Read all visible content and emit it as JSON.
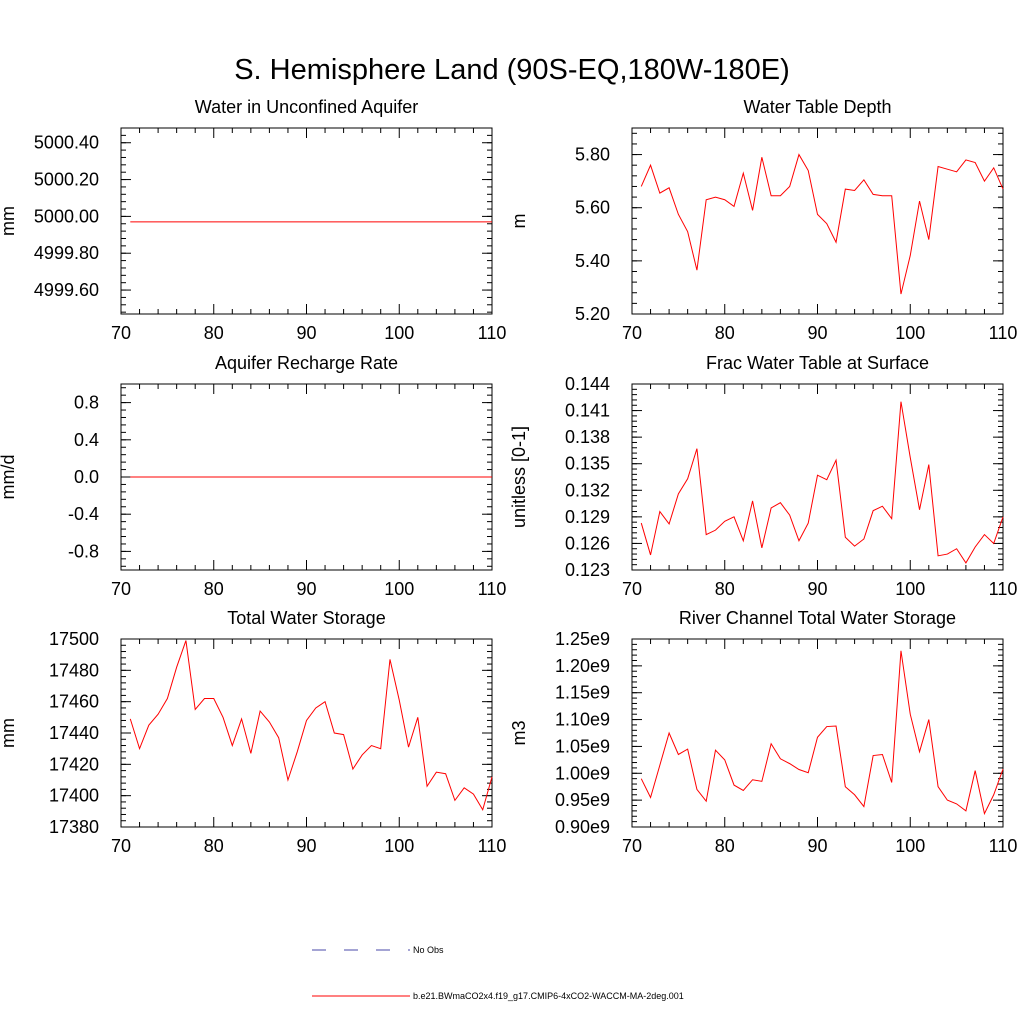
{
  "page_title": "S. Hemisphere Land (90S-EQ,180W-180E)",
  "legend": {
    "obs_label": "No Obs",
    "obs_color": "#4a4aa8",
    "model_label": "b.e21.BWmaCO2x4.f19_g17.CMIP6-4xCO2-WACCM-MA-2deg.001",
    "model_color": "#ff0000"
  },
  "chart_data": [
    {
      "id": "unconfined-aquifer",
      "type": "line",
      "title": "Water in Unconfined Aquifer",
      "xlabel": "",
      "ylabel": "mm",
      "xlim": [
        70,
        110
      ],
      "ylim": [
        4999.47,
        5000.48
      ],
      "x_ticks": [
        70,
        80,
        90,
        100,
        110
      ],
      "y_ticks": [
        4999.6,
        4999.8,
        5000.0,
        5000.2,
        5000.4
      ],
      "y_tick_labels": [
        "4999.60",
        "4999.80",
        "5000.00",
        "5000.20",
        "5000.40"
      ],
      "y_minor_step": 0.04,
      "x": [
        71,
        72,
        73,
        74,
        75,
        76,
        77,
        78,
        79,
        80,
        81,
        82,
        83,
        84,
        85,
        86,
        87,
        88,
        89,
        90,
        91,
        92,
        93,
        94,
        95,
        96,
        97,
        98,
        99,
        100,
        101,
        102,
        103,
        104,
        105,
        106,
        107,
        108,
        109,
        110
      ],
      "values": [
        4999.97,
        4999.97,
        4999.97,
        4999.97,
        4999.97,
        4999.97,
        4999.97,
        4999.97,
        4999.97,
        4999.97,
        4999.97,
        4999.97,
        4999.97,
        4999.97,
        4999.97,
        4999.97,
        4999.97,
        4999.97,
        4999.97,
        4999.97,
        4999.97,
        4999.97,
        4999.97,
        4999.97,
        4999.97,
        4999.97,
        4999.97,
        4999.97,
        4999.97,
        4999.97,
        4999.97,
        4999.97,
        4999.97,
        4999.97,
        4999.97,
        4999.97,
        4999.97,
        4999.97,
        4999.97,
        4999.97
      ]
    },
    {
      "id": "water-table-depth",
      "type": "line",
      "title": "Water Table Depth",
      "xlabel": "",
      "ylabel": "m",
      "xlim": [
        70,
        110
      ],
      "ylim": [
        5.2,
        5.9
      ],
      "x_ticks": [
        70,
        80,
        90,
        100,
        110
      ],
      "y_ticks": [
        5.2,
        5.4,
        5.6,
        5.8
      ],
      "y_tick_labels": [
        "5.20",
        "5.40",
        "5.60",
        "5.80"
      ],
      "y_minor_step": 0.04,
      "x": [
        71,
        72,
        73,
        74,
        75,
        76,
        77,
        78,
        79,
        80,
        81,
        82,
        83,
        84,
        85,
        86,
        87,
        88,
        89,
        90,
        91,
        92,
        93,
        94,
        95,
        96,
        97,
        98,
        99,
        100,
        101,
        102,
        103,
        104,
        105,
        106,
        107,
        108,
        109,
        110
      ],
      "values": [
        5.68,
        5.76,
        5.655,
        5.675,
        5.575,
        5.51,
        5.365,
        5.63,
        5.64,
        5.63,
        5.605,
        5.73,
        5.59,
        5.79,
        5.645,
        5.645,
        5.68,
        5.8,
        5.74,
        5.575,
        5.54,
        5.47,
        5.67,
        5.665,
        5.705,
        5.65,
        5.645,
        5.645,
        5.275,
        5.42,
        5.625,
        5.48,
        5.755,
        5.745,
        5.735,
        5.78,
        5.77,
        5.7,
        5.75,
        5.67
      ]
    },
    {
      "id": "aquifer-recharge",
      "type": "line",
      "title": "Aquifer Recharge Rate",
      "xlabel": "",
      "ylabel": "mm/d",
      "xlim": [
        70,
        110
      ],
      "ylim": [
        -1.0,
        1.0
      ],
      "x_ticks": [
        70,
        80,
        90,
        100,
        110
      ],
      "y_ticks": [
        -0.8,
        -0.4,
        0.0,
        0.4,
        0.8
      ],
      "y_tick_labels": [
        "-0.8",
        "-0.4",
        "0.0",
        "0.4",
        "0.8"
      ],
      "y_minor_step": 0.08,
      "x": [
        71,
        72,
        73,
        74,
        75,
        76,
        77,
        78,
        79,
        80,
        81,
        82,
        83,
        84,
        85,
        86,
        87,
        88,
        89,
        90,
        91,
        92,
        93,
        94,
        95,
        96,
        97,
        98,
        99,
        100,
        101,
        102,
        103,
        104,
        105,
        106,
        107,
        108,
        109,
        110
      ],
      "values": [
        0,
        0,
        0,
        0,
        0,
        0,
        0,
        0,
        0,
        0,
        0,
        0,
        0,
        0,
        0,
        0,
        0,
        0,
        0,
        0,
        0,
        0,
        0,
        0,
        0,
        0,
        0,
        0,
        0,
        0,
        0,
        0,
        0,
        0,
        0,
        0,
        0,
        0,
        0,
        0
      ]
    },
    {
      "id": "frac-water-table",
      "type": "line",
      "title": "Frac Water Table at Surface",
      "xlabel": "",
      "ylabel": "unitless [0-1]",
      "xlim": [
        70,
        110
      ],
      "ylim": [
        0.123,
        0.144
      ],
      "x_ticks": [
        70,
        80,
        90,
        100,
        110
      ],
      "y_ticks": [
        0.123,
        0.126,
        0.129,
        0.132,
        0.135,
        0.138,
        0.141,
        0.144
      ],
      "y_tick_labels": [
        "0.123",
        "0.126",
        "0.129",
        "0.132",
        "0.135",
        "0.138",
        "0.141",
        "0.144"
      ],
      "y_minor_step": 0.0006,
      "x": [
        71,
        72,
        73,
        74,
        75,
        76,
        77,
        78,
        79,
        80,
        81,
        82,
        83,
        84,
        85,
        86,
        87,
        88,
        89,
        90,
        91,
        92,
        93,
        94,
        95,
        96,
        97,
        98,
        99,
        100,
        101,
        102,
        103,
        104,
        105,
        106,
        107,
        108,
        109,
        110
      ],
      "values": [
        0.1283,
        0.1247,
        0.1296,
        0.1282,
        0.1316,
        0.1333,
        0.1367,
        0.127,
        0.1275,
        0.1285,
        0.129,
        0.1263,
        0.1308,
        0.1255,
        0.13,
        0.1306,
        0.1292,
        0.1263,
        0.1283,
        0.1337,
        0.1332,
        0.1354,
        0.1267,
        0.1257,
        0.1265,
        0.1297,
        0.1302,
        0.1288,
        0.142,
        0.1357,
        0.1298,
        0.1349,
        0.1246,
        0.1248,
        0.1254,
        0.1238,
        0.1256,
        0.127,
        0.126,
        0.129
      ]
    },
    {
      "id": "total-water-storage",
      "type": "line",
      "title": "Total Water Storage",
      "xlabel": "",
      "ylabel": "mm",
      "xlim": [
        70,
        110
      ],
      "ylim": [
        17380,
        17500
      ],
      "x_ticks": [
        70,
        80,
        90,
        100,
        110
      ],
      "y_ticks": [
        17380,
        17400,
        17420,
        17440,
        17460,
        17480,
        17500
      ],
      "y_tick_labels": [
        "17380",
        "17400",
        "17420",
        "17440",
        "17460",
        "17480",
        "17500"
      ],
      "y_minor_step": 4,
      "x": [
        71,
        72,
        73,
        74,
        75,
        76,
        77,
        78,
        79,
        80,
        81,
        82,
        83,
        84,
        85,
        86,
        87,
        88,
        89,
        90,
        91,
        92,
        93,
        94,
        95,
        96,
        97,
        98,
        99,
        100,
        101,
        102,
        103,
        104,
        105,
        106,
        107,
        108,
        109,
        110
      ],
      "values": [
        17449,
        17430,
        17445,
        17452,
        17462,
        17482,
        17499,
        17455,
        17462,
        17462,
        17450,
        17432,
        17449,
        17427,
        17454,
        17447,
        17437,
        17410,
        17428,
        17448,
        17456,
        17460,
        17440,
        17439,
        17417,
        17426,
        17432,
        17430,
        17487,
        17461,
        17431,
        17450,
        17406,
        17415,
        17414,
        17397,
        17405,
        17401,
        17391,
        17412
      ]
    },
    {
      "id": "river-channel-storage",
      "type": "line",
      "title": "River Channel Total Water Storage",
      "xlabel": "",
      "ylabel": "m3",
      "xlim": [
        70,
        110
      ],
      "ylim": [
        0.9,
        1.25
      ],
      "x_ticks": [
        70,
        80,
        90,
        100,
        110
      ],
      "y_ticks": [
        0.9,
        0.95,
        1.0,
        1.05,
        1.1,
        1.15,
        1.2,
        1.25
      ],
      "y_tick_labels": [
        "0.90e9",
        "0.95e9",
        "1.00e9",
        "1.05e9",
        "1.10e9",
        "1.15e9",
        "1.20e9",
        "1.25e9"
      ],
      "y_minor_step": 0.01,
      "x": [
        71,
        72,
        73,
        74,
        75,
        76,
        77,
        78,
        79,
        80,
        81,
        82,
        83,
        84,
        85,
        86,
        87,
        88,
        89,
        90,
        91,
        92,
        93,
        94,
        95,
        96,
        97,
        98,
        99,
        100,
        101,
        102,
        103,
        104,
        105,
        106,
        107,
        108,
        109,
        110
      ],
      "values": [
        0.99,
        0.955,
        1.015,
        1.075,
        1.035,
        1.045,
        0.97,
        0.948,
        1.043,
        1.025,
        0.978,
        0.968,
        0.988,
        0.985,
        1.055,
        1.027,
        1.018,
        1.007,
        1.001,
        1.067,
        1.087,
        1.088,
        0.975,
        0.96,
        0.938,
        1.033,
        1.035,
        0.983,
        1.228,
        1.11,
        1.04,
        1.1,
        0.975,
        0.95,
        0.943,
        0.93,
        1.005,
        0.925,
        0.96,
        1.008
      ]
    }
  ]
}
